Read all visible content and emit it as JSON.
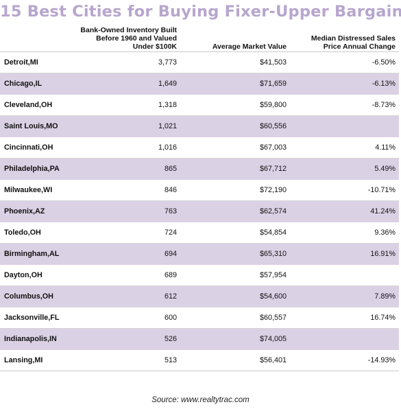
{
  "chart_data": {
    "type": "table",
    "title": "15 Best Cities for Buying Fixer-Upper Bargains",
    "columns": [
      "",
      "Bank-Owned Inventory Built Before 1960 and Valued Under $100K",
      "Average Market Value",
      "Median Distressed Sales Price Annual Change"
    ],
    "header_lines": {
      "inventory": [
        "Bank-Owned Inventory Built",
        "Before 1960 and Valued",
        "Under $100K"
      ],
      "average": [
        "Average Market Value"
      ],
      "change": [
        "Median Distressed Sales",
        "Price Annual Change"
      ]
    },
    "rows": [
      {
        "city": "Detroit,MI",
        "inventory": "3,773",
        "avg_value": "$41,503",
        "change": "-6.50%"
      },
      {
        "city": "Chicago,IL",
        "inventory": "1,649",
        "avg_value": "$71,659",
        "change": "-6.13%"
      },
      {
        "city": "Cleveland,OH",
        "inventory": "1,318",
        "avg_value": "$59,800",
        "change": "-8.73%"
      },
      {
        "city": "Saint Louis,MO",
        "inventory": "1,021",
        "avg_value": "$60,556",
        "change": ""
      },
      {
        "city": "Cincinnati,OH",
        "inventory": "1,016",
        "avg_value": "$67,003",
        "change": "4.11%"
      },
      {
        "city": "Philadelphia,PA",
        "inventory": "865",
        "avg_value": "$67,712",
        "change": "5.49%"
      },
      {
        "city": "Milwaukee,WI",
        "inventory": "846",
        "avg_value": "$72,190",
        "change": "-10.71%"
      },
      {
        "city": "Phoenix,AZ",
        "inventory": "763",
        "avg_value": "$62,574",
        "change": "41.24%"
      },
      {
        "city": "Toledo,OH",
        "inventory": "724",
        "avg_value": "$54,854",
        "change": "9.36%"
      },
      {
        "city": "Birmingham,AL",
        "inventory": "694",
        "avg_value": "$65,310",
        "change": "16.91%"
      },
      {
        "city": "Dayton,OH",
        "inventory": "689",
        "avg_value": "$57,954",
        "change": ""
      },
      {
        "city": "Columbus,OH",
        "inventory": "612",
        "avg_value": "$54,600",
        "change": "7.89%"
      },
      {
        "city": "Jacksonville,FL",
        "inventory": "600",
        "avg_value": "$60,557",
        "change": "16.74%"
      },
      {
        "city": "Indianapolis,IN",
        "inventory": "526",
        "avg_value": "$74,005",
        "change": ""
      },
      {
        "city": "Lansing,MI",
        "inventory": "513",
        "avg_value": "$56,401",
        "change": "-14.93%"
      }
    ],
    "source": "Source: www.realtytrac.com"
  },
  "colors": {
    "title": "#b7a6cd",
    "alt_row": "#dbd1e4"
  }
}
